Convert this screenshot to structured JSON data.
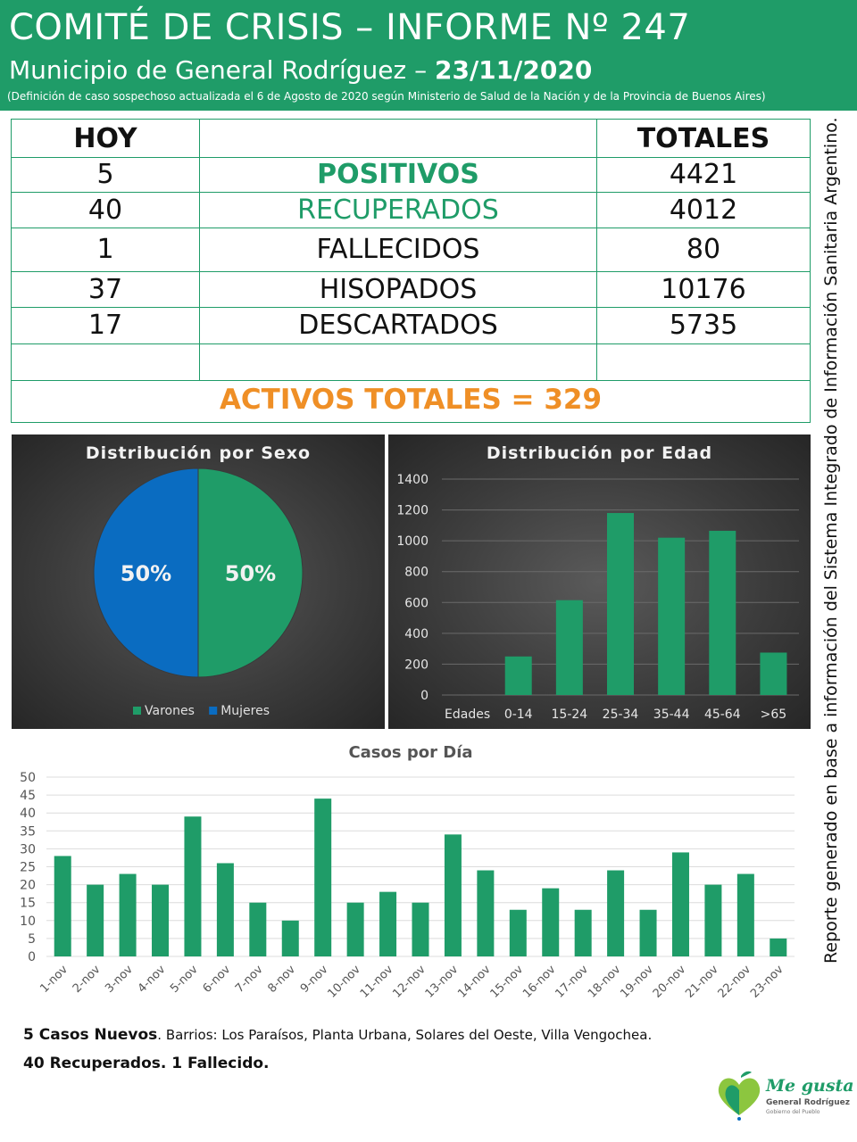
{
  "header": {
    "title": "COMITÉ DE CRISIS – INFORME Nº 247",
    "subtitle": "Municipio de General Rodríguez – ",
    "date": "23/11/2020",
    "note": "(Definición de caso sospechoso actualizada el 6 de Agosto de 2020 según Ministerio de Salud de la Nación y de la Provincia de Buenos Aires)"
  },
  "stats": {
    "col_today": "HOY",
    "col_total": "TOTALES",
    "rows": [
      {
        "today": "5",
        "label": "POSITIVOS",
        "total": "4421"
      },
      {
        "today": "40",
        "label": "RECUPERADOS",
        "total": "4012"
      },
      {
        "today": "1",
        "label": "FALLECIDOS",
        "total": "80"
      },
      {
        "today": "37",
        "label": "HISOPADOS",
        "total": "10176"
      },
      {
        "today": "17",
        "label": "DESCARTADOS",
        "total": "5735"
      }
    ],
    "active": "ACTIVOS TOTALES = 329"
  },
  "colors": {
    "green": "#1f9c68",
    "blue": "#0a6cc1",
    "orange": "#ef8f26",
    "bar": "#1f9c68"
  },
  "chart_data": [
    {
      "type": "pie",
      "title": "Distribución por Sexo",
      "labels": [
        "Varones",
        "Mujeres"
      ],
      "values": [
        50,
        50
      ],
      "data_labels": [
        "50%",
        "50%"
      ],
      "colors": [
        "#1f9c68",
        "#0a6cc1"
      ],
      "legend": "bottom"
    },
    {
      "type": "bar",
      "title": "Distribución por Edad",
      "categories": [
        "Edades",
        "0-14",
        "15-24",
        "25-34",
        "35-44",
        "45-64",
        ">65"
      ],
      "values": [
        0,
        250,
        615,
        1180,
        1020,
        1065,
        275
      ],
      "ylim": [
        0,
        1400
      ],
      "yticks": [
        "0",
        "200",
        "400",
        "600",
        "800",
        "1000",
        "1200",
        "1400"
      ],
      "grid": true
    },
    {
      "type": "bar",
      "title": "Casos por Día",
      "categories": [
        "1-nov",
        "2-nov",
        "3-nov",
        "4-nov",
        "5-nov",
        "6-nov",
        "7-nov",
        "8-nov",
        "9-nov",
        "10-nov",
        "11-nov",
        "12-nov",
        "13-nov",
        "14-nov",
        "15-nov",
        "16-nov",
        "17-nov",
        "18-nov",
        "19-nov",
        "20-nov",
        "21-nov",
        "22-nov",
        "23-nov"
      ],
      "values": [
        28,
        20,
        23,
        20,
        39,
        26,
        15,
        10,
        44,
        15,
        18,
        15,
        34,
        24,
        13,
        19,
        13,
        24,
        13,
        29,
        20,
        23,
        5
      ],
      "ylim": [
        0,
        50
      ],
      "yticks": [
        "0",
        "5",
        "10",
        "15",
        "20",
        "25",
        "30",
        "35",
        "40",
        "45",
        "50"
      ],
      "grid": true
    }
  ],
  "side_text": "Reporte generado en base a información del Sistema Integrado de Información Sanitaria Argentino.",
  "footer": {
    "line1_bold": "5 Casos Nuevos",
    "line1_rest": ". Barrios: Los Paraísos, Planta Urbana, Solares del Oeste, Villa Vengochea.",
    "line2": "40 Recuperados. 1 Fallecido."
  },
  "logo": {
    "line1": "Me gusta",
    "line2": "General Rodríguez",
    "line3": "Gobierno del Pueblo"
  }
}
